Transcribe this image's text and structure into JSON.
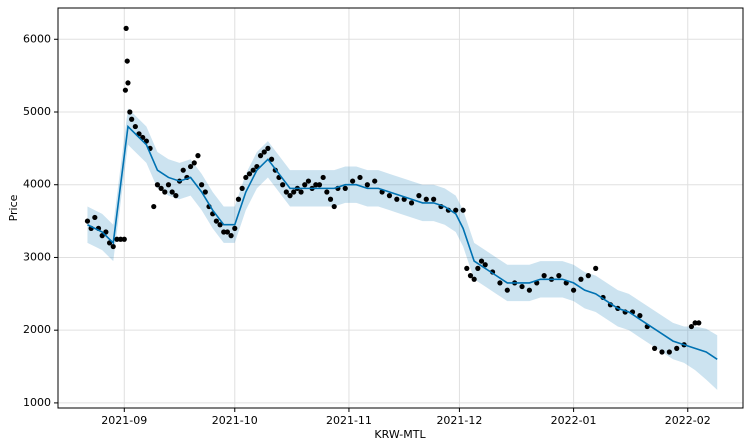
{
  "chart_data": {
    "type": "scatter",
    "ylabel": "Price",
    "xlabel": "KRW-MTL",
    "grid": true,
    "xlim": [
      -18,
      168
    ],
    "ylim": [
      930,
      6430
    ],
    "xticks": [
      {
        "value": 0,
        "label": "2021-09"
      },
      {
        "value": 30,
        "label": "2021-10"
      },
      {
        "value": 61,
        "label": "2021-11"
      },
      {
        "value": 91,
        "label": "2021-12"
      },
      {
        "value": 122,
        "label": "2022-01"
      },
      {
        "value": 153,
        "label": "2022-02"
      }
    ],
    "yticks": [
      1000,
      2000,
      3000,
      4000,
      5000,
      6000
    ],
    "points": {
      "color": "#000000",
      "x": [
        -10,
        -9,
        -8,
        -7,
        -6,
        -5,
        -4,
        -3,
        -2,
        -1,
        0,
        0.3,
        0.5,
        0.8,
        1,
        1.5,
        2,
        3,
        4,
        5,
        6,
        7,
        8,
        9,
        10,
        11,
        12,
        13,
        14,
        15,
        16,
        17,
        18,
        19,
        20,
        21,
        22,
        23,
        24,
        25,
        26,
        27,
        28,
        29,
        30,
        31,
        32,
        33,
        34,
        35,
        36,
        37,
        38,
        39,
        40,
        41,
        42,
        43,
        44,
        45,
        46,
        47,
        48,
        49,
        50,
        51,
        52,
        53,
        54,
        55,
        56,
        57,
        58,
        60,
        62,
        64,
        66,
        68,
        70,
        72,
        74,
        76,
        78,
        80,
        82,
        84,
        86,
        88,
        90,
        92,
        93,
        94,
        95,
        96,
        97,
        98,
        100,
        102,
        104,
        106,
        108,
        110,
        112,
        114,
        116,
        118,
        120,
        122,
        124,
        126,
        128,
        130,
        132,
        134,
        136,
        138,
        140,
        142,
        144,
        146,
        148,
        150,
        152,
        154,
        155,
        156
      ],
      "values": [
        3500,
        3400,
        3550,
        3400,
        3300,
        3350,
        3200,
        3150,
        3250,
        3250,
        3250,
        5300,
        6150,
        5700,
        5400,
        5000,
        4900,
        4800,
        4700,
        4650,
        4600,
        4500,
        3700,
        4000,
        3950,
        3900,
        4000,
        3900,
        3850,
        4050,
        4200,
        4100,
        4250,
        4300,
        4400,
        4000,
        3900,
        3700,
        3600,
        3500,
        3450,
        3350,
        3350,
        3300,
        3400,
        3800,
        3950,
        4100,
        4150,
        4200,
        4250,
        4400,
        4450,
        4500,
        4350,
        4200,
        4100,
        4000,
        3900,
        3850,
        3900,
        3950,
        3900,
        4000,
        4050,
        3950,
        4000,
        4000,
        4100,
        3900,
        3800,
        3700,
        3950,
        3950,
        4050,
        4100,
        4000,
        4050,
        3900,
        3850,
        3800,
        3800,
        3750,
        3850,
        3800,
        3800,
        3700,
        3650,
        3650,
        3650,
        2850,
        2750,
        2700,
        2850,
        2950,
        2900,
        2800,
        2650,
        2550,
        2650,
        2600,
        2550,
        2650,
        2750,
        2700,
        2750,
        2650,
        2550,
        2700,
        2750,
        2850,
        2450,
        2350,
        2300,
        2250,
        2250,
        2200,
        2050,
        1750,
        1700,
        1700,
        1750,
        1800,
        2050,
        2100,
        2100
      ]
    },
    "forecast": {
      "color": "#0072B2",
      "x": [
        -10,
        -6,
        -3,
        1,
        3,
        6,
        9,
        12,
        15,
        18,
        21,
        24,
        27,
        30,
        33,
        36,
        39,
        42,
        45,
        48,
        51,
        54,
        57,
        60,
        63,
        66,
        69,
        72,
        75,
        78,
        81,
        84,
        87,
        90,
        92,
        95,
        98,
        101,
        104,
        107,
        110,
        113,
        116,
        119,
        122,
        125,
        128,
        131,
        134,
        137,
        140,
        143,
        146,
        149,
        152,
        155,
        158,
        161
      ],
      "values": [
        3450,
        3350,
        3200,
        4800,
        4700,
        4550,
        4200,
        4100,
        4050,
        4100,
        3900,
        3650,
        3450,
        3450,
        3900,
        4200,
        4350,
        4150,
        3950,
        3950,
        3950,
        3950,
        3950,
        4000,
        4000,
        3950,
        3950,
        3900,
        3850,
        3800,
        3750,
        3750,
        3700,
        3600,
        3400,
        2950,
        2850,
        2750,
        2650,
        2650,
        2650,
        2700,
        2700,
        2700,
        2650,
        2550,
        2500,
        2400,
        2300,
        2250,
        2150,
        2050,
        1950,
        1850,
        1800,
        1750,
        1700,
        1600
      ],
      "lower": [
        3200,
        3100,
        2950,
        4550,
        4450,
        4300,
        3950,
        3850,
        3800,
        3850,
        3650,
        3400,
        3200,
        3200,
        3650,
        3950,
        4100,
        3900,
        3700,
        3700,
        3700,
        3700,
        3700,
        3750,
        3750,
        3700,
        3700,
        3650,
        3600,
        3550,
        3500,
        3500,
        3450,
        3350,
        3150,
        2700,
        2600,
        2500,
        2400,
        2400,
        2400,
        2450,
        2450,
        2450,
        2400,
        2300,
        2250,
        2150,
        2050,
        2000,
        1900,
        1800,
        1700,
        1600,
        1550,
        1450,
        1320,
        1180
      ],
      "upper": [
        3700,
        3600,
        3450,
        5050,
        4950,
        4800,
        4450,
        4350,
        4300,
        4350,
        4150,
        3900,
        3700,
        3700,
        4150,
        4450,
        4600,
        4400,
        4200,
        4200,
        4200,
        4200,
        4200,
        4250,
        4250,
        4200,
        4200,
        4150,
        4100,
        4050,
        4000,
        4000,
        3950,
        3850,
        3650,
        3200,
        3100,
        3000,
        2900,
        2900,
        2900,
        2950,
        2950,
        2950,
        2900,
        2800,
        2750,
        2650,
        2550,
        2500,
        2400,
        2300,
        2200,
        2100,
        2050,
        2050,
        2020,
        1930
      ]
    }
  }
}
